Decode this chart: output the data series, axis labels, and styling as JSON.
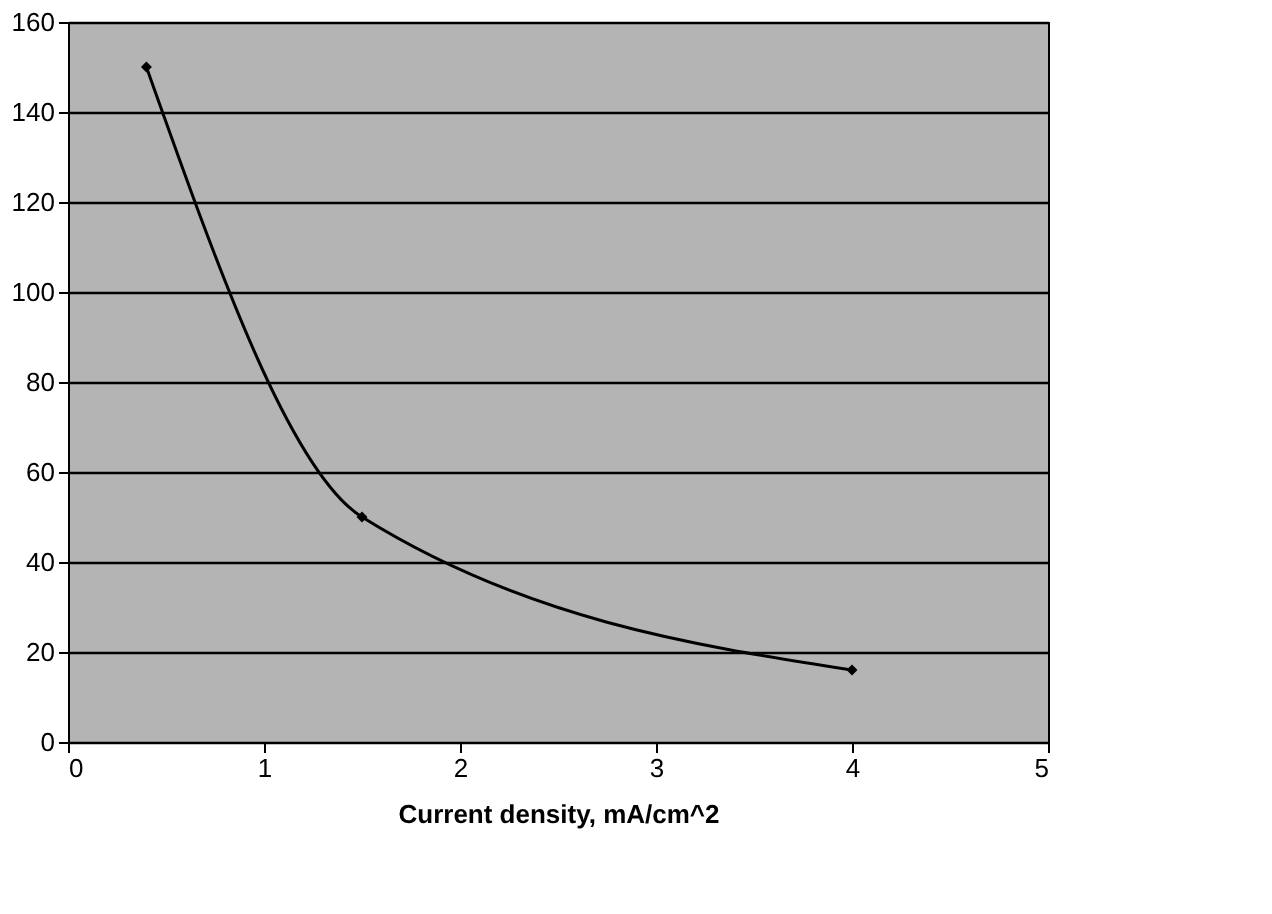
{
  "chart_data": {
    "type": "line",
    "xlabel": "Current density, mA/cm^2",
    "x": [
      0.4,
      1.5,
      4
    ],
    "series": [
      {
        "color": "#000000",
        "values": [
          150,
          50,
          16
        ]
      }
    ],
    "xlim": [
      0,
      5
    ],
    "xticks": [
      0,
      1,
      2,
      3,
      4,
      5
    ],
    "ylim": [
      0,
      160
    ],
    "yticks": [
      0,
      20,
      40,
      60,
      80,
      100,
      120,
      140,
      160
    ],
    "grid": "y",
    "marker": "diamond",
    "line_style": "solid"
  }
}
